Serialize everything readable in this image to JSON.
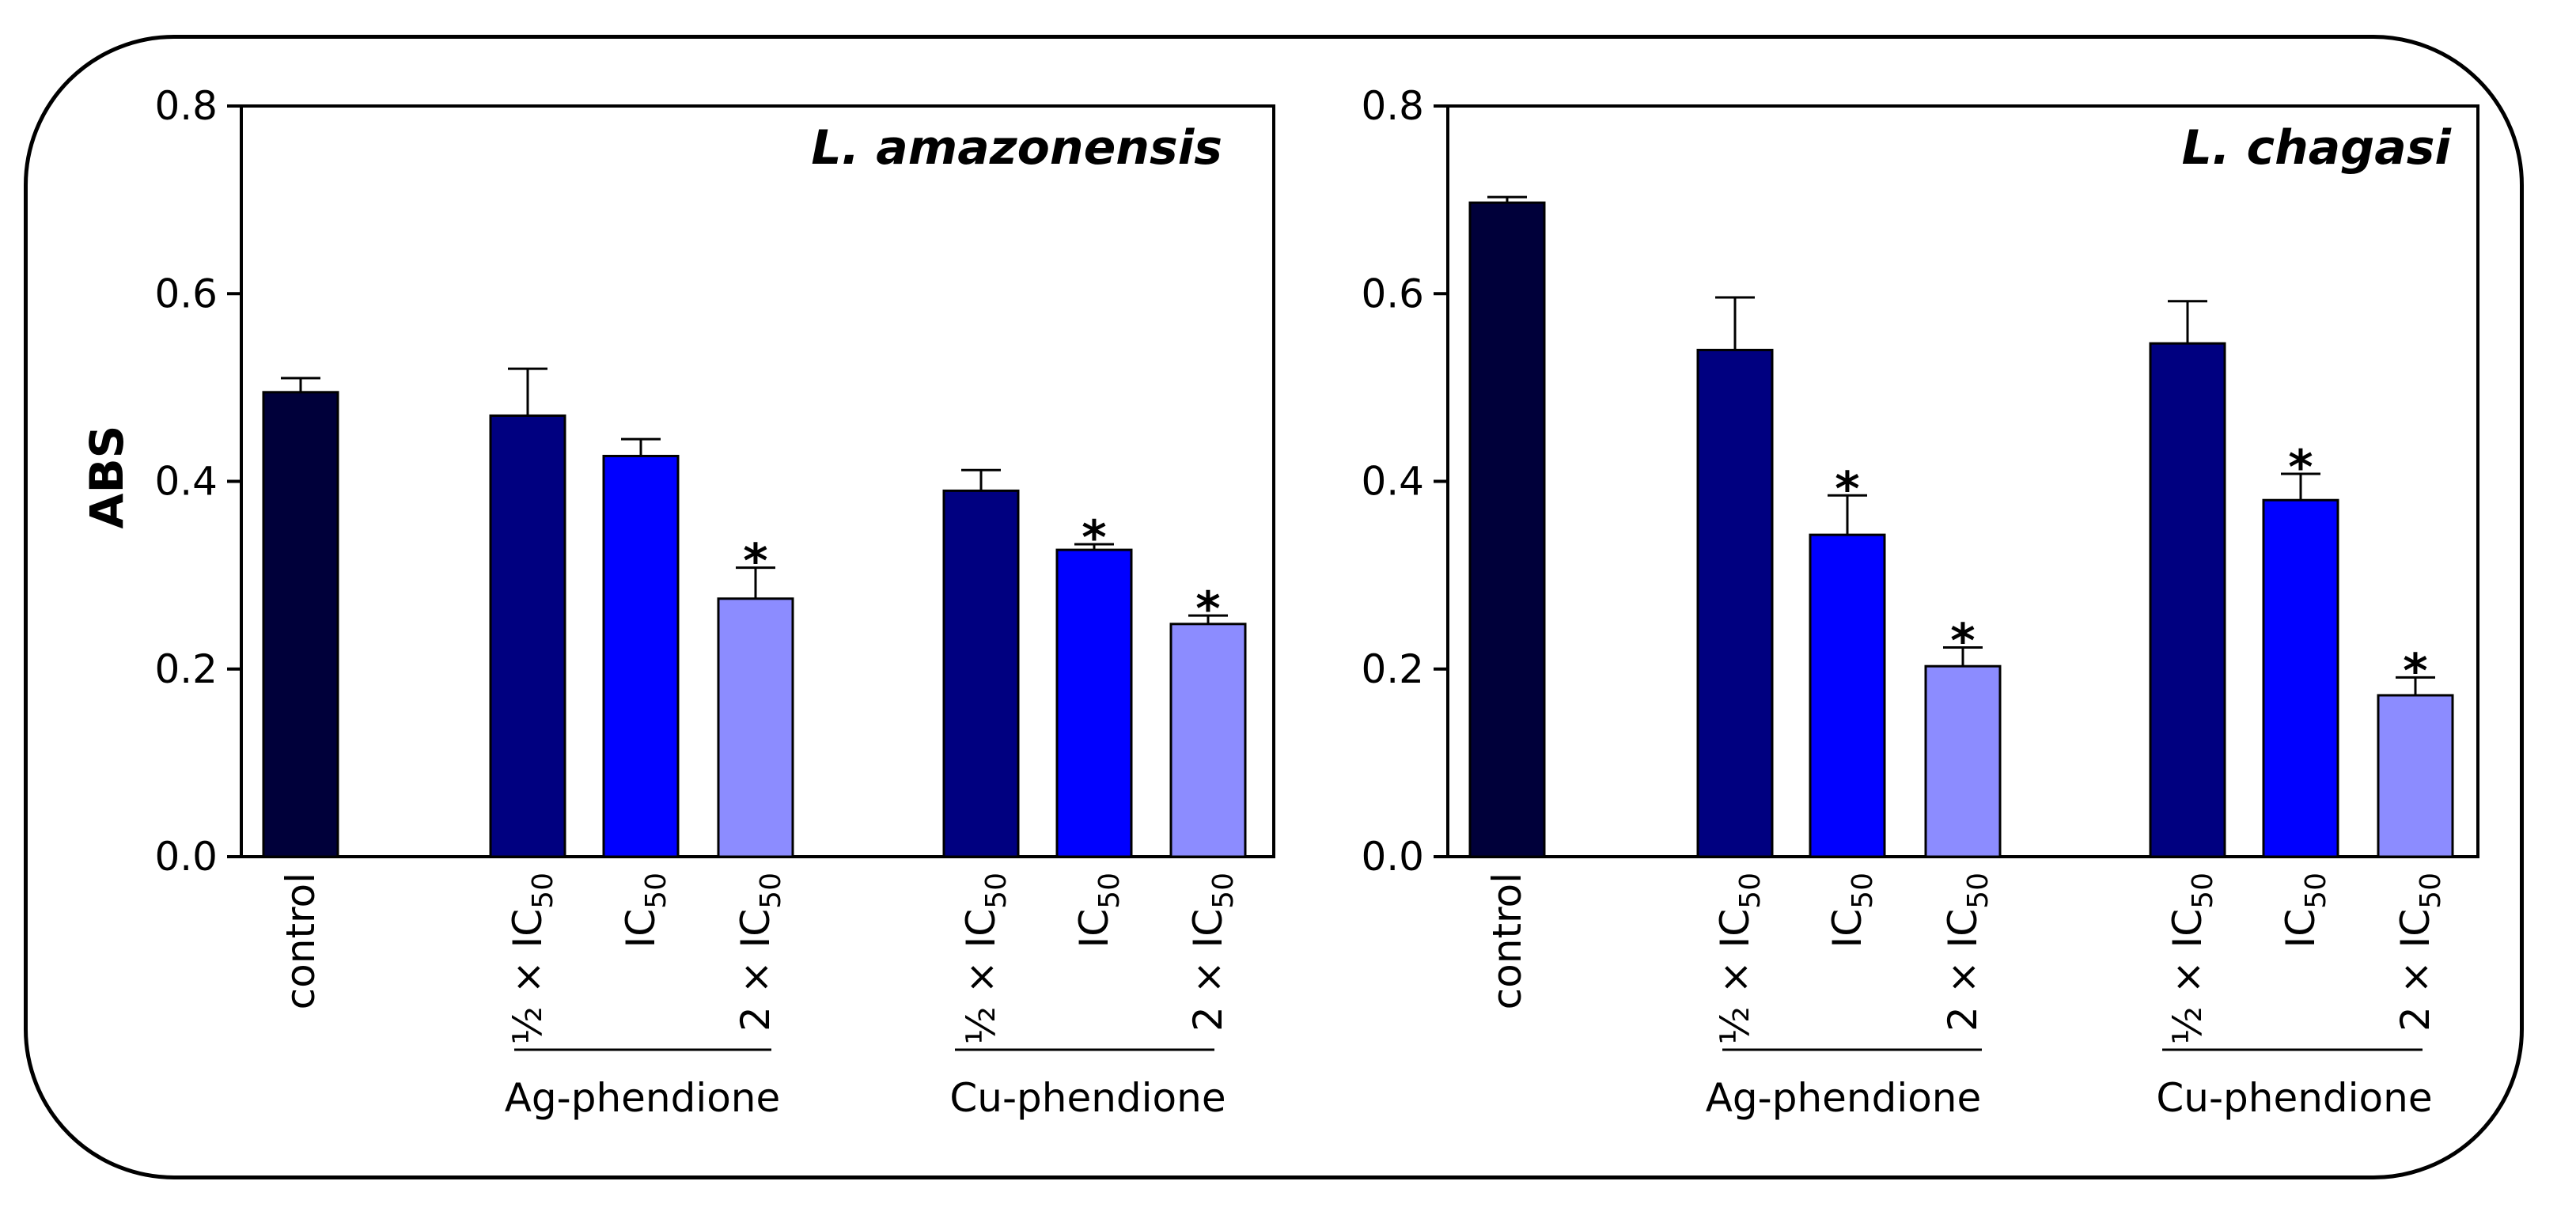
{
  "ylabel": "ABS",
  "chart_data": [
    {
      "type": "bar",
      "title": "L. amazonensis",
      "ylabel": "ABS",
      "ylim": [
        0,
        0.8
      ],
      "yticks": [
        "0.0",
        "0.2",
        "0.4",
        "0.6",
        "0.8"
      ],
      "categories": [
        "control",
        "½ × IC50",
        "IC50",
        "2 × IC50",
        "½ × IC50",
        "IC50",
        "2 × IC50"
      ],
      "groups": [
        {
          "label": "Ag-phendione",
          "members": [
            1,
            2,
            3
          ]
        },
        {
          "label": "Cu-phendione",
          "members": [
            4,
            5,
            6
          ]
        }
      ],
      "values": [
        0.495,
        0.47,
        0.427,
        0.275,
        0.39,
        0.327,
        0.248
      ],
      "errors": [
        0.015,
        0.05,
        0.018,
        0.033,
        0.022,
        0.006,
        0.009
      ],
      "significant": [
        false,
        false,
        false,
        true,
        false,
        true,
        true
      ],
      "colors": [
        "#00003a",
        "#000080",
        "#0000ff",
        "#8c8cff",
        "#000080",
        "#0000ff",
        "#8c8cff"
      ]
    },
    {
      "type": "bar",
      "title": "L. chagasi",
      "ylabel": "ABS",
      "ylim": [
        0,
        0.8
      ],
      "yticks": [
        "0.0",
        "0.2",
        "0.4",
        "0.6",
        "0.8"
      ],
      "categories": [
        "control",
        "½ × IC50",
        "IC50",
        "2 × IC50",
        "½ × IC50",
        "IC50",
        "2 × IC50"
      ],
      "groups": [
        {
          "label": "Ag-phendione",
          "members": [
            1,
            2,
            3
          ]
        },
        {
          "label": "Cu-phendione",
          "members": [
            4,
            5,
            6
          ]
        }
      ],
      "values": [
        0.697,
        0.54,
        0.343,
        0.203,
        0.547,
        0.38,
        0.172
      ],
      "errors": [
        0.006,
        0.056,
        0.042,
        0.02,
        0.045,
        0.028,
        0.019
      ],
      "significant": [
        false,
        false,
        true,
        true,
        false,
        true,
        true
      ],
      "colors": [
        "#00003a",
        "#000080",
        "#0000ff",
        "#8c8cff",
        "#000080",
        "#0000ff",
        "#8c8cff"
      ]
    }
  ],
  "significance_symbol": "*"
}
